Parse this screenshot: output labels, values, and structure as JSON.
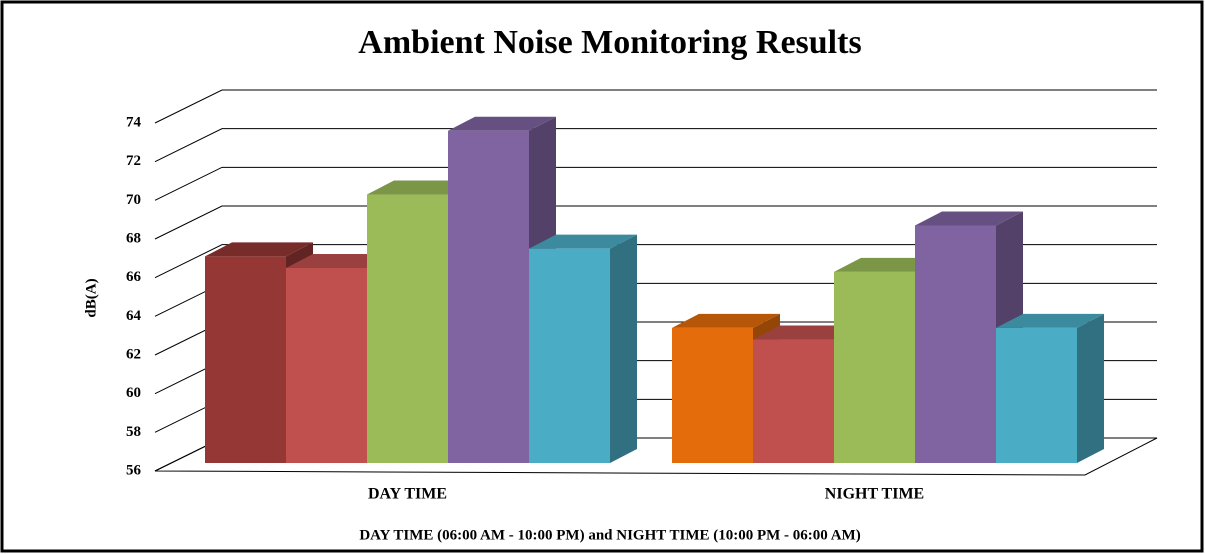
{
  "chart_data": {
    "type": "bar3d",
    "title": "Ambient Noise Monitoring Results",
    "ylabel": "dB(A)",
    "xlabel": "DAY TIME  (06:00 AM - 10:00 PM) and NIGHT  TIME  (10:00 PM - 06:00 AM)",
    "categories": [
      "DAY TIME",
      "NIGHT TIME"
    ],
    "series": [
      {
        "colors": [
          "#953735",
          "#e46c0a"
        ],
        "values": [
          67.1,
          63.4
        ]
      },
      {
        "color": "#c0504d",
        "values": [
          66.5,
          62.8
        ]
      },
      {
        "color": "#9bbb59",
        "values": [
          70.3,
          66.3
        ]
      },
      {
        "color": "#8064a2",
        "values": [
          73.6,
          68.7
        ]
      },
      {
        "color": "#4bacc6",
        "values": [
          67.5,
          63.4
        ]
      }
    ],
    "ylim": [
      56,
      74
    ],
    "yticks": [
      56,
      58,
      60,
      62,
      64,
      66,
      68,
      70,
      72,
      74
    ],
    "grid": true
  }
}
